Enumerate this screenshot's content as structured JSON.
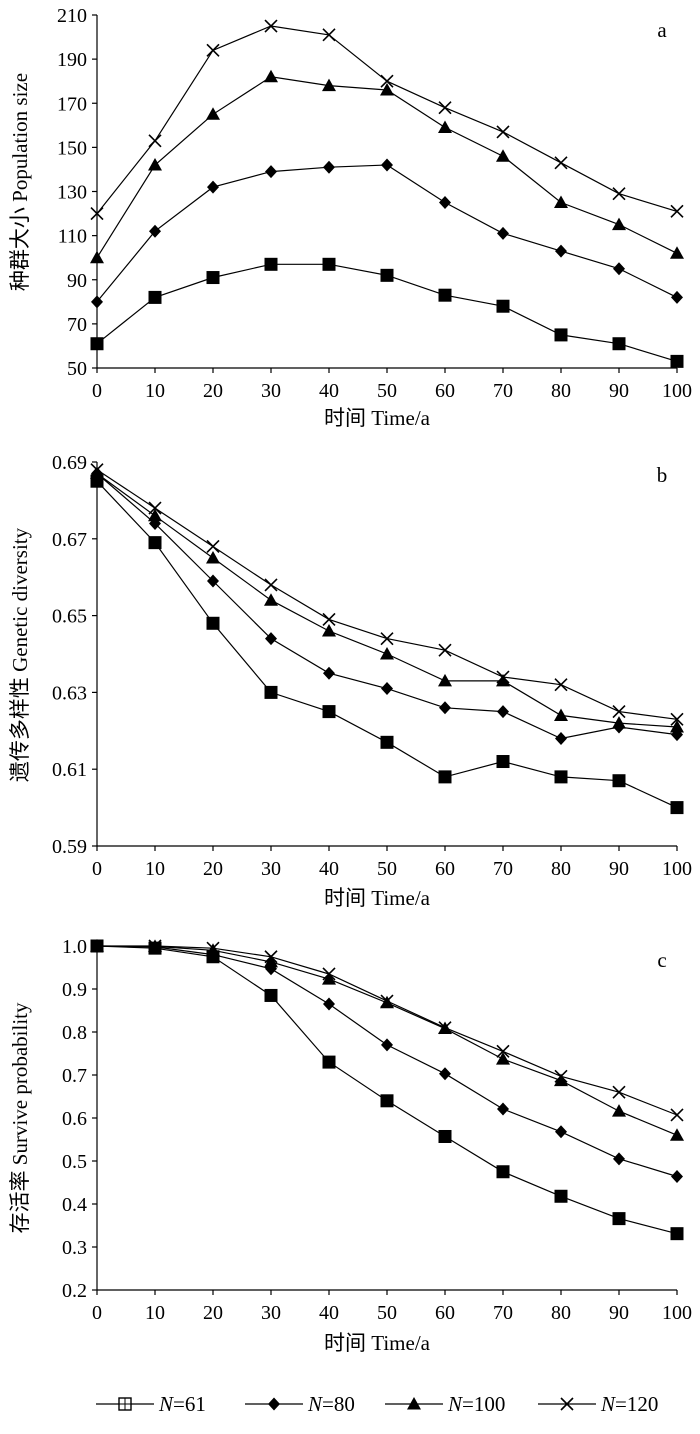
{
  "legend": [
    {
      "label": "N=61",
      "italic_prefix": "N",
      "rest": "=61",
      "marker": "square"
    },
    {
      "label": "N=80",
      "italic_prefix": "N",
      "rest": "=80",
      "marker": "diamond"
    },
    {
      "label": "N=100",
      "italic_prefix": "N",
      "rest": "=100",
      "marker": "triangle"
    },
    {
      "label": "N=120",
      "italic_prefix": "N",
      "rest": "=120",
      "marker": "cross"
    }
  ],
  "chart_data": [
    {
      "type": "line",
      "panel": "a",
      "xlabel": "时间 Time/a",
      "ylabel": "种群大小 Population size",
      "x": [
        0,
        10,
        20,
        30,
        40,
        50,
        60,
        70,
        80,
        90,
        100
      ],
      "xticks": [
        "0",
        "10",
        "20",
        "30",
        "40",
        "50",
        "60",
        "70",
        "80",
        "90",
        "100"
      ],
      "ylim": [
        50,
        210
      ],
      "yticks": [
        "50",
        "70",
        "90",
        "110",
        "130",
        "150",
        "170",
        "190",
        "210"
      ],
      "ytick_values": [
        50,
        70,
        90,
        110,
        130,
        150,
        170,
        190,
        210
      ],
      "series": [
        {
          "name": "N=61",
          "marker": "square",
          "values": [
            61,
            82,
            91,
            97,
            97,
            92,
            83,
            78,
            65,
            61,
            53
          ]
        },
        {
          "name": "N=80",
          "marker": "diamond",
          "values": [
            80,
            112,
            132,
            139,
            141,
            142,
            125,
            111,
            103,
            95,
            82
          ]
        },
        {
          "name": "N=100",
          "marker": "triangle",
          "values": [
            100,
            142,
            165,
            182,
            178,
            176,
            159,
            146,
            125,
            115,
            102
          ]
        },
        {
          "name": "N=120",
          "marker": "cross",
          "values": [
            120,
            153,
            194,
            205,
            201,
            180,
            168,
            157,
            143,
            129,
            121
          ]
        }
      ]
    },
    {
      "type": "line",
      "panel": "b",
      "xlabel": "时间 Time/a",
      "ylabel": "遗传多样性 Genetic diversity",
      "x": [
        0,
        10,
        20,
        30,
        40,
        50,
        60,
        70,
        80,
        90,
        100
      ],
      "xticks": [
        "0",
        "10",
        "20",
        "30",
        "40",
        "50",
        "60",
        "70",
        "80",
        "90",
        "100"
      ],
      "ylim": [
        0.59,
        0.69
      ],
      "yticks": [
        "0.59",
        "0.61",
        "0.63",
        "0.65",
        "0.67",
        "0.69"
      ],
      "ytick_values": [
        0.59,
        0.61,
        0.63,
        0.65,
        0.67,
        0.69
      ],
      "series": [
        {
          "name": "N=61",
          "marker": "square",
          "values": [
            0.685,
            0.669,
            0.648,
            0.63,
            0.625,
            0.617,
            0.608,
            0.612,
            0.608,
            0.607,
            0.6
          ]
        },
        {
          "name": "N=80",
          "marker": "diamond",
          "values": [
            0.687,
            0.674,
            0.659,
            0.644,
            0.635,
            0.631,
            0.626,
            0.625,
            0.618,
            0.621,
            0.619
          ]
        },
        {
          "name": "N=100",
          "marker": "triangle",
          "values": [
            0.687,
            0.676,
            0.665,
            0.654,
            0.646,
            0.64,
            0.633,
            0.633,
            0.624,
            0.622,
            0.621
          ]
        },
        {
          "name": "N=120",
          "marker": "cross",
          "values": [
            0.688,
            0.678,
            0.668,
            0.658,
            0.649,
            0.644,
            0.641,
            0.634,
            0.632,
            0.625,
            0.623
          ]
        }
      ]
    },
    {
      "type": "line",
      "panel": "c",
      "xlabel": "时间 Time/a",
      "ylabel": "存活率 Survive probability",
      "x": [
        0,
        10,
        20,
        30,
        40,
        50,
        60,
        70,
        80,
        90,
        100
      ],
      "xticks": [
        "0",
        "10",
        "20",
        "30",
        "40",
        "50",
        "60",
        "70",
        "80",
        "90",
        "100"
      ],
      "ylim": [
        0.2,
        1.0
      ],
      "yticks": [
        "0.2",
        "0.3",
        "0.4",
        "0.5",
        "0.6",
        "0.7",
        "0.8",
        "0.9",
        "1.0"
      ],
      "ytick_values": [
        0.2,
        0.3,
        0.4,
        0.5,
        0.6,
        0.7,
        0.8,
        0.9,
        1.0
      ],
      "series": [
        {
          "name": "N=61",
          "marker": "square",
          "values": [
            1.0,
            0.995,
            0.975,
            0.885,
            0.73,
            0.64,
            0.557,
            0.475,
            0.418,
            0.366,
            0.331
          ]
        },
        {
          "name": "N=80",
          "marker": "diamond",
          "values": [
            1.0,
            0.998,
            0.98,
            0.947,
            0.865,
            0.77,
            0.703,
            0.621,
            0.568,
            0.505,
            0.464
          ]
        },
        {
          "name": "N=100",
          "marker": "triangle",
          "values": [
            1.0,
            0.999,
            0.99,
            0.963,
            0.923,
            0.868,
            0.808,
            0.737,
            0.687,
            0.616,
            0.56
          ]
        },
        {
          "name": "N=120",
          "marker": "cross",
          "values": [
            1.0,
            1.0,
            0.995,
            0.975,
            0.935,
            0.872,
            0.81,
            0.755,
            0.697,
            0.66,
            0.607
          ]
        }
      ]
    }
  ]
}
